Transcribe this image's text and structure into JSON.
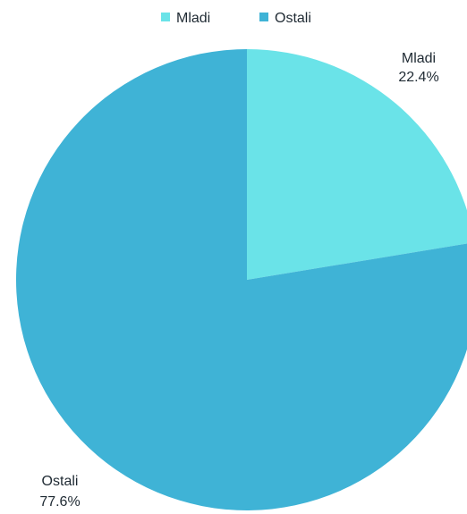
{
  "chart_data": {
    "type": "pie",
    "labels": [
      "Mladi",
      "Ostali"
    ],
    "values": [
      22.4,
      77.6
    ],
    "value_labels": [
      "22.4%",
      "77.6%"
    ],
    "colors": [
      "#6ae3e8",
      "#3fb3d6"
    ],
    "start_angle": "12 o'clock",
    "direction": "clockwise",
    "legend": {
      "position": "top-center",
      "entries": [
        "Mladi",
        "Ostali"
      ]
    }
  }
}
